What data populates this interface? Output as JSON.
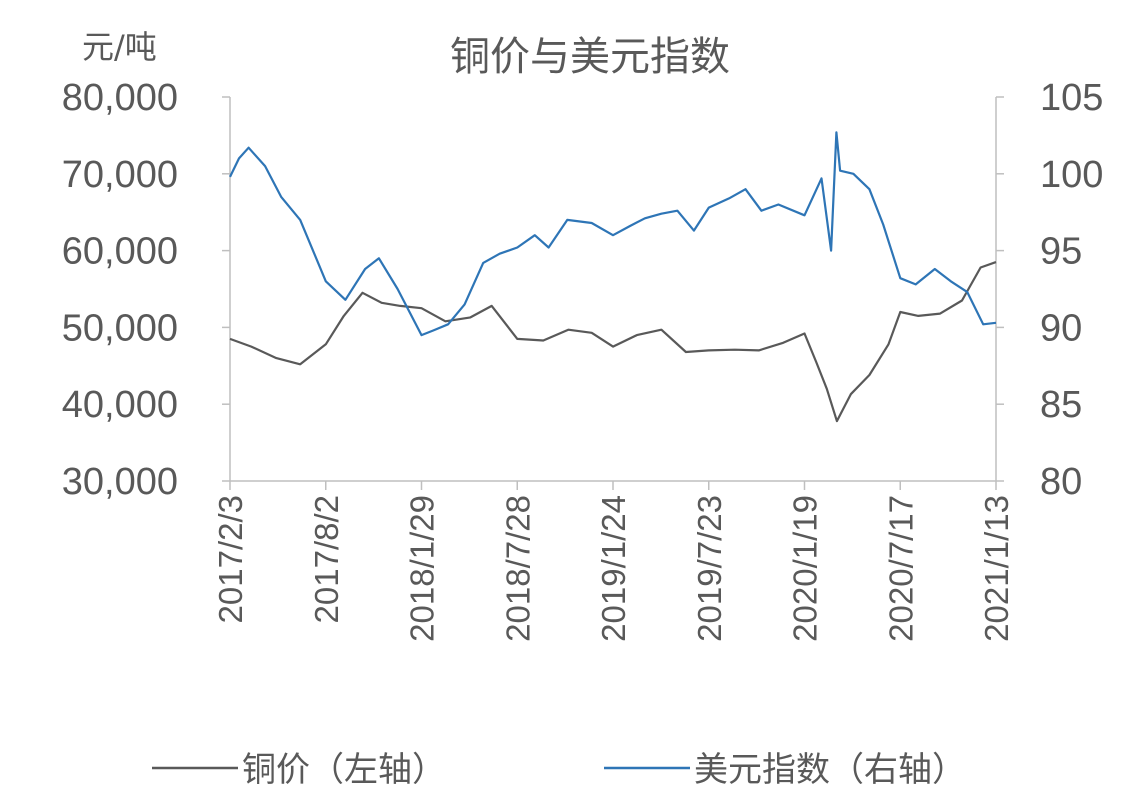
{
  "chart_data": {
    "type": "line",
    "title": "铜价与美元指数",
    "left_axis": {
      "unit_label": "元/吨",
      "ylim": [
        30000,
        80000
      ],
      "ticks": [
        80000,
        70000,
        60000,
        50000,
        40000,
        30000
      ],
      "tick_labels": [
        "80,000",
        "70,000",
        "60,000",
        "50,000",
        "40,000",
        "30,000"
      ]
    },
    "right_axis": {
      "ylim": [
        80,
        105
      ],
      "ticks": [
        105,
        100,
        95,
        90,
        85,
        80
      ],
      "tick_labels": [
        "105",
        "100",
        "95",
        "90",
        "85",
        "80"
      ]
    },
    "x_axis": {
      "tick_labels": [
        "2017/2/3",
        "2017/8/2",
        "2018/1/29",
        "2018/7/28",
        "2019/1/24",
        "2019/7/23",
        "2020/1/19",
        "2020/7/17",
        "2021/1/13"
      ]
    },
    "grid": false,
    "legend_position": "bottom",
    "series": [
      {
        "name": "铜价（左轴）",
        "axis": "left",
        "color": "#595959",
        "x": [
          "2017/2/3",
          "2017/3/15",
          "2017/5/1",
          "2017/6/15",
          "2017/8/2",
          "2017/9/5",
          "2017/10/10",
          "2017/11/15",
          "2017/12/20",
          "2018/1/29",
          "2018/3/15",
          "2018/5/1",
          "2018/6/10",
          "2018/7/28",
          "2018/9/15",
          "2018/11/1",
          "2018/12/15",
          "2019/1/24",
          "2019/3/10",
          "2019/4/25",
          "2019/6/10",
          "2019/7/23",
          "2019/9/10",
          "2019/10/25",
          "2019/12/10",
          "2020/1/19",
          "2020/2/10",
          "2020/3/1",
          "2020/3/20",
          "2020/4/15",
          "2020/5/20",
          "2020/6/25",
          "2020/7/17",
          "2020/8/20",
          "2020/9/30",
          "2020/11/10",
          "2020/12/15",
          "2021/1/13"
        ],
        "values": [
          48500,
          47500,
          46000,
          45200,
          47800,
          51500,
          54500,
          53200,
          52800,
          52500,
          50800,
          51300,
          52800,
          48500,
          48300,
          49700,
          49300,
          47500,
          49000,
          49700,
          46800,
          47000,
          47100,
          47000,
          48000,
          49200,
          45500,
          42000,
          37800,
          41300,
          43800,
          47800,
          52000,
          51500,
          51800,
          53500,
          57800,
          58500
        ]
      },
      {
        "name": "美元指数（右轴）",
        "axis": "right",
        "color": "#2e75b6",
        "x": [
          "2017/2/3",
          "2017/2/20",
          "2017/3/10",
          "2017/4/10",
          "2017/5/10",
          "2017/6/15",
          "2017/8/2",
          "2017/9/8",
          "2017/10/15",
          "2017/11/10",
          "2017/12/15",
          "2018/1/29",
          "2018/2/20",
          "2018/3/20",
          "2018/4/20",
          "2018/5/25",
          "2018/6/25",
          "2018/7/28",
          "2018/8/30",
          "2018/9/25",
          "2018/10/30",
          "2018/12/15",
          "2019/1/24",
          "2019/2/25",
          "2019/3/25",
          "2019/4/25",
          "2019/5/25",
          "2019/6/25",
          "2019/7/23",
          "2019/8/30",
          "2019/9/30",
          "2019/10/30",
          "2019/12/1",
          "2020/1/19",
          "2020/2/20",
          "2020/3/9",
          "2020/3/19",
          "2020/3/26",
          "2020/4/20",
          "2020/5/20",
          "2020/6/15",
          "2020/7/17",
          "2020/8/15",
          "2020/9/20",
          "2020/10/20",
          "2020/11/20",
          "2020/12/20",
          "2021/1/13"
        ],
        "values": [
          99.8,
          101,
          101.7,
          100.5,
          98.5,
          97,
          93,
          91.8,
          93.8,
          94.5,
          92.5,
          89.5,
          89.8,
          90.2,
          91.5,
          94.2,
          94.8,
          95.2,
          96,
          95.2,
          97,
          96.8,
          96,
          96.6,
          97.1,
          97.4,
          97.6,
          96.3,
          97.8,
          98.4,
          99,
          97.6,
          98,
          97.3,
          99.7,
          95,
          102.7,
          100.2,
          100,
          99,
          96.7,
          93.2,
          92.8,
          93.8,
          93,
          92.3,
          90.2,
          90.3
        ]
      }
    ]
  }
}
